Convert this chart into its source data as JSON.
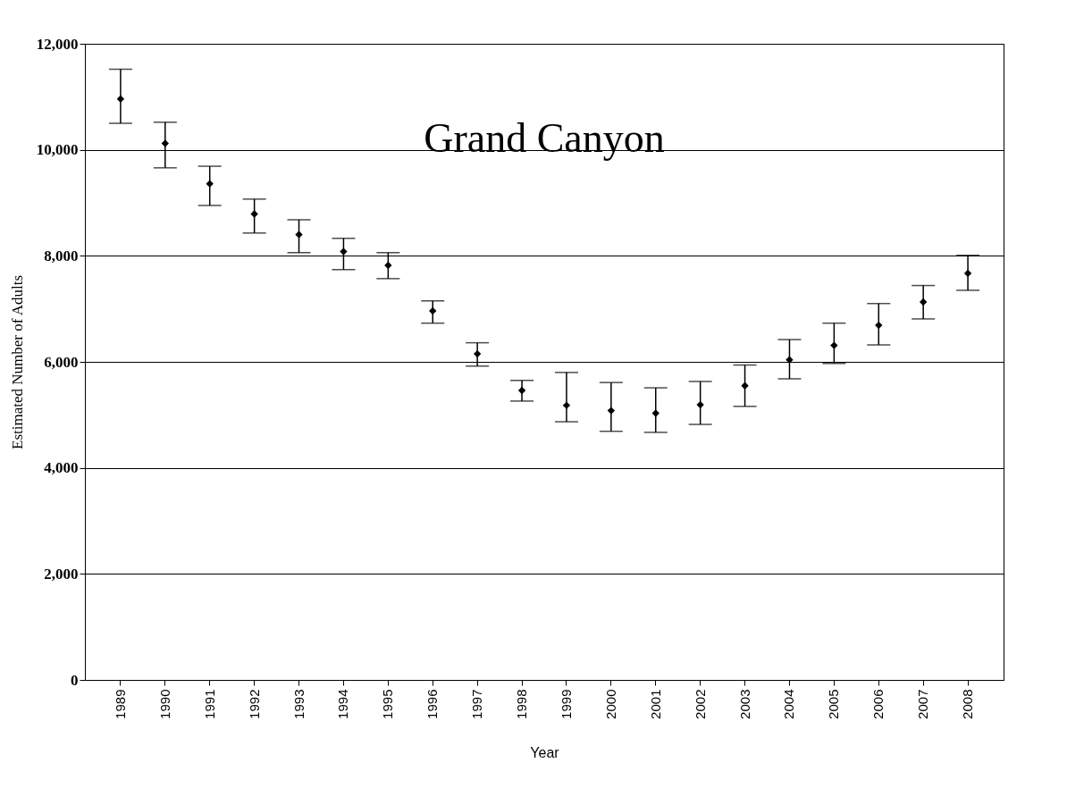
{
  "chart_data": {
    "type": "scatter",
    "title": "Grand Canyon",
    "xlabel": "Year",
    "ylabel": "Estimated Number of Adults",
    "categories": [
      "1989",
      "1990",
      "1991",
      "1992",
      "1993",
      "1994",
      "1995",
      "1996",
      "1997",
      "1998",
      "1999",
      "2000",
      "2001",
      "2002",
      "2003",
      "2004",
      "2005",
      "2006",
      "2007",
      "2008"
    ],
    "series": [
      {
        "color": "#000000",
        "values": [
          10960,
          10120,
          9360,
          8790,
          8400,
          8080,
          7820,
          6960,
          6150,
          5460,
          5180,
          5080,
          5030,
          5190,
          5550,
          6040,
          6310,
          6690,
          7130,
          7670
        ],
        "errors": [
          [
            10500,
            11520
          ],
          [
            9660,
            10520
          ],
          [
            8950,
            9690
          ],
          [
            8430,
            9070
          ],
          [
            8060,
            8680
          ],
          [
            7740,
            8330
          ],
          [
            7570,
            8060
          ],
          [
            6730,
            7150
          ],
          [
            5920,
            6360
          ],
          [
            5260,
            5650
          ],
          [
            4870,
            5800
          ],
          [
            4690,
            5610
          ],
          [
            4670,
            5510
          ],
          [
            4820,
            5630
          ],
          [
            5160,
            5940
          ],
          [
            5680,
            6420
          ],
          [
            5970,
            6730
          ],
          [
            6320,
            7100
          ],
          [
            6810,
            7440
          ],
          [
            7350,
            8010
          ]
        ]
      }
    ],
    "ylim": [
      0,
      12000
    ],
    "yticks": [
      {
        "value": 0,
        "label": "0"
      },
      {
        "value": 2000,
        "label": "2,000"
      },
      {
        "value": 4000,
        "label": "4,000"
      },
      {
        "value": 6000,
        "label": "6,000"
      },
      {
        "value": 8000,
        "label": "8,000"
      },
      {
        "value": 10000,
        "label": "10,000"
      },
      {
        "value": 12000,
        "label": "12,000"
      }
    ],
    "grid": "y",
    "marker": "diamond"
  }
}
